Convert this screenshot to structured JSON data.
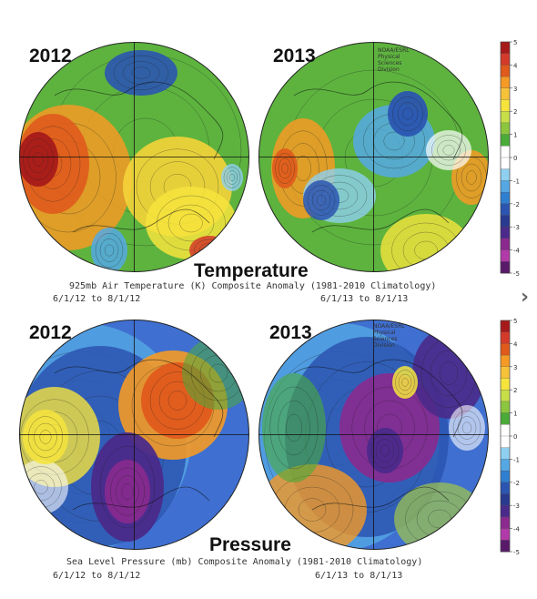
{
  "maps": [
    {
      "id": "t2012",
      "year": "2012",
      "credit": "",
      "variable": "temperature",
      "blobs": [
        {
          "c": "#a71a1a",
          "o": 0.95
        },
        {
          "c": "#e05a1c",
          "o": 0.9
        },
        {
          "c": "#f59a25",
          "o": 0.85
        },
        {
          "c": "#f5d33a",
          "o": 0.9
        },
        {
          "c": "#f6e43d",
          "o": 0.85
        },
        {
          "c": "#2b55b0",
          "o": 0.9
        },
        {
          "c": "#55a8e4",
          "o": 0.85
        },
        {
          "c": "#8fd0f0",
          "o": 0.8
        },
        {
          "c": "#4aab3a",
          "o": 0.6
        },
        {
          "c": "#d43a2a",
          "o": 0.85
        }
      ]
    },
    {
      "id": "t2013",
      "year": "2013",
      "credit": "NOAA/ESRL Physical Sciences Division",
      "variable": "temperature",
      "blobs": [
        {
          "c": "#2b55b0",
          "o": 0.95
        },
        {
          "c": "#55a8e4",
          "o": 0.85
        },
        {
          "c": "#e05a1c",
          "o": 0.9
        },
        {
          "c": "#f59a25",
          "o": 0.85
        },
        {
          "c": "#f6e43d",
          "o": 0.8
        },
        {
          "c": "#f59a25",
          "o": 0.85
        },
        {
          "c": "#2b55b0",
          "o": 0.85
        },
        {
          "c": "#8fd0f0",
          "o": 0.8
        },
        {
          "c": "#4aab3a",
          "o": 0.6
        },
        {
          "c": "#ffffff",
          "o": 0.7
        }
      ]
    },
    {
      "id": "p2012",
      "year": "2012",
      "credit": "",
      "variable": "pressure",
      "blobs": [
        {
          "c": "#e05a1c",
          "o": 0.95
        },
        {
          "c": "#f59a25",
          "o": 0.9
        },
        {
          "c": "#f6e43d",
          "o": 0.85
        },
        {
          "c": "#4a2a8a",
          "o": 0.95
        },
        {
          "c": "#8a2a8f",
          "o": 0.9
        },
        {
          "c": "#2b55b0",
          "o": 0.85
        },
        {
          "c": "#55a8e4",
          "o": 0.8
        },
        {
          "c": "#f6e43d",
          "o": 0.8
        },
        {
          "c": "#4aab3a",
          "o": 0.55
        },
        {
          "c": "#ffffff",
          "o": 0.6
        }
      ]
    },
    {
      "id": "p2013",
      "year": "2013",
      "credit": "NOAA/ESRL Physical Sciences Division",
      "variable": "pressure",
      "blobs": [
        {
          "c": "#4a2a8a",
          "o": 0.95
        },
        {
          "c": "#8a2a8f",
          "o": 0.9
        },
        {
          "c": "#2b55b0",
          "o": 0.85
        },
        {
          "c": "#55a8e4",
          "o": 0.8
        },
        {
          "c": "#f6e43d",
          "o": 0.85
        },
        {
          "c": "#f59a25",
          "o": 0.8
        },
        {
          "c": "#4aab3a",
          "o": 0.6
        },
        {
          "c": "#a3c84a",
          "o": 0.7
        },
        {
          "c": "#4a2a8a",
          "o": 0.9
        },
        {
          "c": "#ffffff",
          "o": 0.6
        }
      ]
    }
  ],
  "temperature": {
    "title": "Temperature",
    "caption_line1": "925mb Air Temperature (K) Composite Anomaly (1981-2010 Climatology)",
    "date_left": "6/1/12  to 8/1/12",
    "date_right": "6/1/13  to 8/1/13"
  },
  "pressure": {
    "title": "Pressure",
    "caption_line1": "Sea Level Pressure (mb) Composite Anomaly (1981-2010 Climatology)",
    "date_left": "6/1/12  to 8/1/12",
    "date_right": "6/1/13  to 8/1/13"
  },
  "colorbar": {
    "ticks": [
      "5",
      "4",
      "3",
      "2",
      "1",
      "0",
      "-1",
      "-2",
      "-3",
      "-4",
      "-5"
    ],
    "colors": [
      "#a71a1a",
      "#d43a2a",
      "#e05a1c",
      "#f59a25",
      "#f5c23a",
      "#f6e43d",
      "#c8df4a",
      "#8cc63f",
      "#4aab3a",
      "#ffffff",
      "#ffffff",
      "#8fd0f0",
      "#55a8e4",
      "#2f7fd0",
      "#2b55b0",
      "#2a3a8f",
      "#4a2a8a",
      "#8a2a8f",
      "#b23aa8",
      "#5a1a6a"
    ]
  },
  "nav": {
    "next_glyph": "›"
  }
}
